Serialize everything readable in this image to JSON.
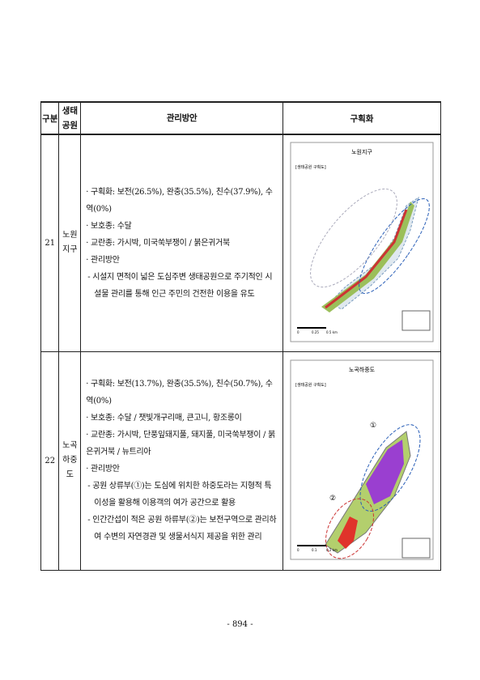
{
  "table": {
    "header": [
      "구분",
      "생태공원",
      "관리방안",
      "구획화"
    ],
    "rows": [
      {
        "no": "21",
        "park": [
          "노원",
          "지구"
        ],
        "items": [
          "· 구획화: 보전(26.5%), 완충(35.5%), 친수(37.9%), 수역(0%)",
          "· 보호종: 수달",
          "· 교란종: 가시박, 미국쑥부쟁이 / 붉은귀거북",
          "· 관리방안"
        ],
        "notes": [
          "- 시설지 면적이 넓은 도심주변 생태공원으로 주기적인 시설물 관리를 통해 인근 주민의 건전한 이용을 유도"
        ],
        "map": {
          "title": "노원지구",
          "label": "[생태공원 구획도]",
          "scale": [
            "0",
            "0.25",
            "0.5 km"
          ]
        }
      },
      {
        "no": "22",
        "park": [
          "노곡",
          "하중도"
        ],
        "items": [
          "· 구획화: 보전(13.7%), 완충(35.5%), 친수(50.7%), 수역(0%)",
          "· 보호종: 수달 / 잿빛개구리매, 큰고니, 황조롱이",
          "· 교란종: 가시박, 단풍잎돼지풀, 돼지풀, 미국쑥부쟁이 / 붉은귀거북 / 뉴트리아",
          "· 관리방안"
        ],
        "notes": [
          "- 공원 상류부(①)는 도심에 위치한 하중도라는 지형적 특이성을 활용해 이용객의 여가 공간으로 활용",
          "- 인간간섭이 적은 공원 하류부(②)는 보전구역으로 관리하여 수변의 자연경관 및 생물서식지 제공을 위한 관리"
        ],
        "map": {
          "title": "노곡하중도",
          "label": "[생태공원 구획도]",
          "markers": [
            "①",
            "②"
          ],
          "scale": [
            "0",
            "0.1",
            "0.2 km"
          ]
        }
      }
    ]
  },
  "footer": {
    "page": "- 894 -"
  }
}
